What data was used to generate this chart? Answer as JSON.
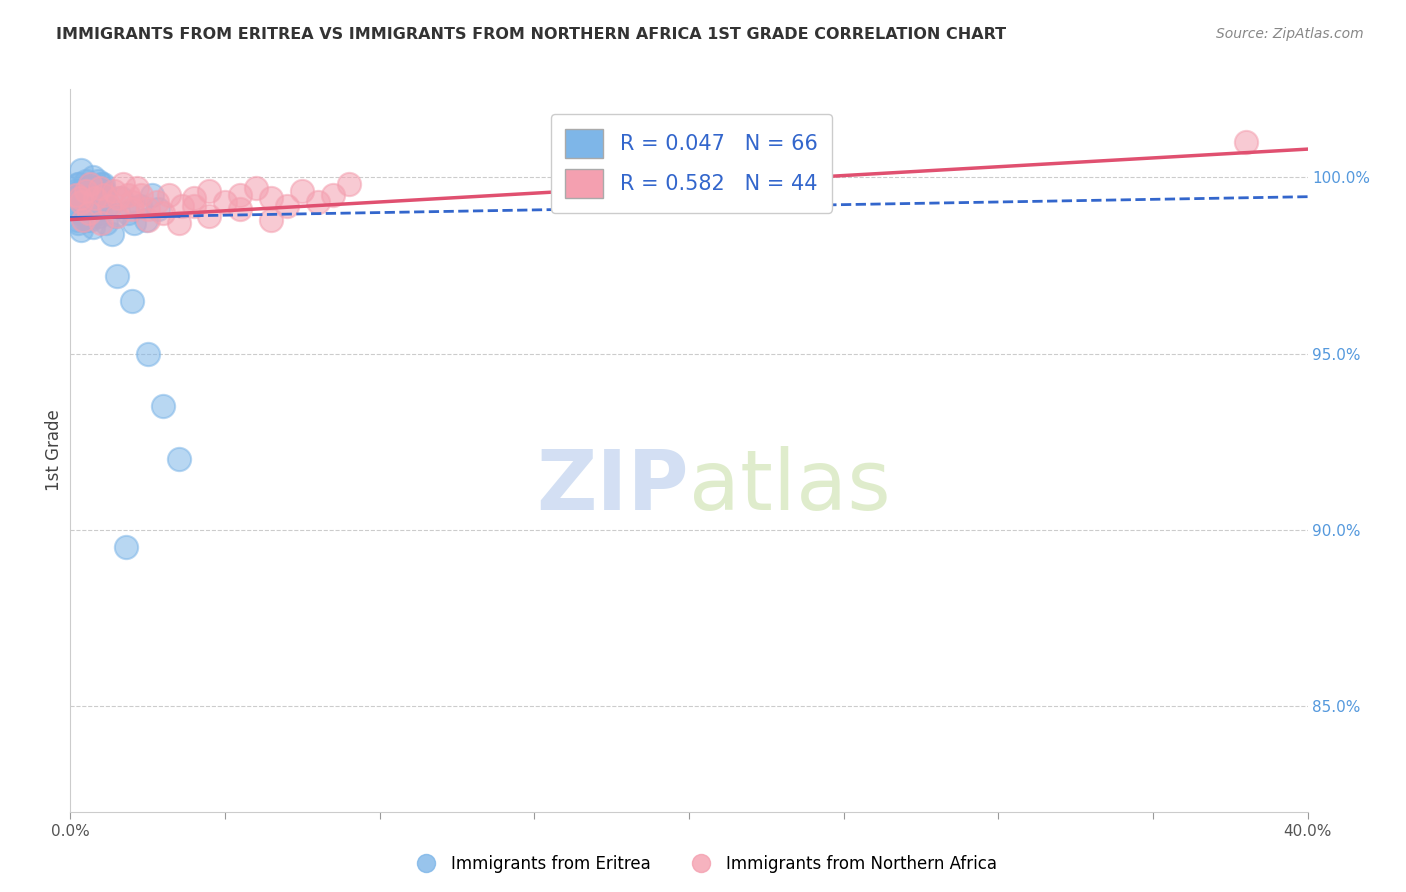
{
  "title": "IMMIGRANTS FROM ERITREA VS IMMIGRANTS FROM NORTHERN AFRICA 1ST GRADE CORRELATION CHART",
  "source": "Source: ZipAtlas.com",
  "ylabel": "1st Grade",
  "y_ticks": [
    85.0,
    90.0,
    95.0,
    100.0
  ],
  "y_tick_labels": [
    "85.0%",
    "90.0%",
    "95.0%",
    "100.0%"
  ],
  "xlim": [
    0.0,
    40.0
  ],
  "ylim": [
    82.0,
    102.5
  ],
  "R_blue": 0.047,
  "N_blue": 66,
  "R_pink": 0.582,
  "N_pink": 44,
  "blue_color": "#7EB6E8",
  "pink_color": "#F4A0B0",
  "trend_blue": "#3366CC",
  "trend_pink": "#E05070",
  "blue_scatter_x": [
    0.15,
    0.25,
    0.35,
    0.45,
    0.55,
    0.65,
    0.75,
    0.85,
    0.95,
    1.05,
    0.2,
    0.3,
    0.4,
    0.5,
    0.6,
    0.7,
    0.8,
    0.9,
    1.0,
    1.1,
    0.18,
    0.28,
    0.38,
    0.48,
    0.58,
    0.68,
    0.78,
    0.88,
    0.98,
    1.08,
    0.22,
    0.32,
    0.42,
    0.52,
    0.62,
    0.72,
    0.82,
    0.92,
    1.02,
    1.12,
    0.25,
    0.45,
    0.65,
    0.85,
    1.05,
    1.25,
    1.45,
    1.65,
    1.85,
    2.05,
    2.25,
    2.45,
    2.65,
    2.85,
    0.35,
    0.55,
    0.75,
    0.95,
    1.15,
    1.35,
    1.5,
    2.0,
    2.5,
    3.0,
    3.5,
    1.8
  ],
  "blue_scatter_y": [
    99.6,
    99.8,
    100.2,
    99.5,
    99.3,
    99.7,
    100.0,
    99.4,
    99.1,
    99.8,
    99.2,
    99.6,
    99.4,
    99.9,
    99.5,
    99.3,
    99.7,
    99.1,
    99.8,
    99.5,
    99.4,
    99.8,
    99.6,
    99.2,
    99.7,
    99.5,
    99.3,
    99.9,
    99.4,
    99.6,
    98.8,
    99.0,
    99.3,
    99.5,
    99.7,
    99.2,
    99.6,
    98.9,
    99.4,
    99.1,
    98.7,
    99.0,
    98.8,
    99.3,
    99.5,
    99.2,
    98.9,
    99.4,
    99.0,
    98.7,
    99.2,
    98.8,
    99.5,
    99.1,
    98.5,
    98.8,
    98.6,
    99.0,
    98.7,
    98.4,
    97.2,
    96.5,
    95.0,
    93.5,
    92.0,
    89.5
  ],
  "pink_scatter_x": [
    0.2,
    0.35,
    0.5,
    0.65,
    0.8,
    0.95,
    1.1,
    1.25,
    1.4,
    1.55,
    1.7,
    1.85,
    2.0,
    2.15,
    2.3,
    2.5,
    2.8,
    3.2,
    3.6,
    4.0,
    4.5,
    5.0,
    5.5,
    6.0,
    6.5,
    7.0,
    7.5,
    8.0,
    8.5,
    9.0,
    0.4,
    0.6,
    1.0,
    1.5,
    2.0,
    2.5,
    3.0,
    3.5,
    4.0,
    4.5,
    5.5,
    6.5,
    38.0,
    0.3
  ],
  "pink_scatter_y": [
    99.5,
    99.3,
    99.6,
    99.8,
    99.4,
    99.7,
    99.5,
    99.2,
    99.6,
    99.4,
    99.8,
    99.5,
    99.3,
    99.7,
    99.5,
    99.1,
    99.3,
    99.5,
    99.2,
    99.4,
    99.6,
    99.3,
    99.5,
    99.7,
    99.4,
    99.2,
    99.6,
    99.3,
    99.5,
    99.8,
    98.8,
    99.0,
    98.7,
    98.9,
    99.1,
    98.8,
    99.0,
    98.7,
    99.2,
    98.9,
    99.1,
    98.8,
    101.0,
    99.4
  ],
  "watermark_zip": "ZIP",
  "watermark_atlas": "atlas",
  "background_color": "#FFFFFF",
  "grid_color": "#CCCCCC"
}
